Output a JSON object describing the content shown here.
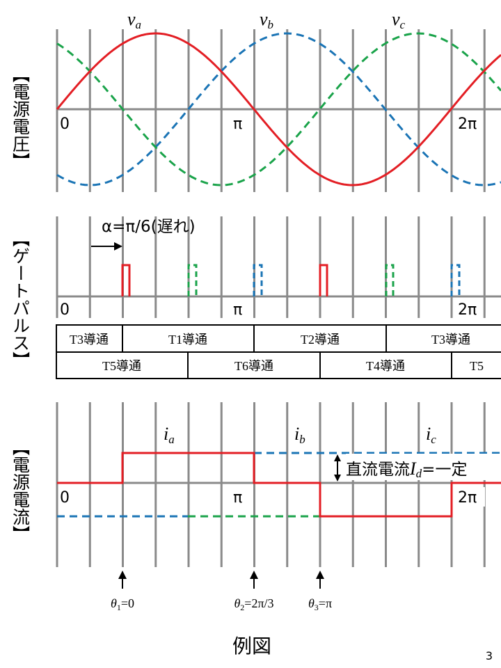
{
  "voltage_section": {
    "side_label": "【電源電圧】",
    "label_0": "0",
    "label_pi": "π",
    "label_2pi": "2π",
    "va": {
      "base": "v",
      "sub": "a"
    },
    "vb": {
      "base": "v",
      "sub": "b"
    },
    "vc": {
      "base": "v",
      "sub": "c"
    }
  },
  "pulse_section": {
    "side_label": "【ゲートパルス】",
    "alpha_label": "α=π/6(遅れ)",
    "label_0": "0",
    "label_pi": "π",
    "label_2pi": "2π"
  },
  "conduction_table": {
    "row1": [
      "T3導通",
      "T1導通",
      "T2導通",
      "T3導通"
    ],
    "row2": [
      "T5導通",
      "T6導通",
      "T4導通",
      "T5"
    ]
  },
  "current_section": {
    "side_label": "【電源電流】",
    "label_0": "0",
    "label_pi": "π",
    "label_2pi": "2π",
    "ia": {
      "base": "i",
      "sub": "a"
    },
    "ib": {
      "base": "i",
      "sub": "b"
    },
    "ic": {
      "base": "i",
      "sub": "c"
    },
    "dc_prefix": "直流電流",
    "dc_var": "I",
    "dc_sub": "d",
    "dc_suffix": "=一定"
  },
  "theta_labels": [
    {
      "base": "θ",
      "sub": "1",
      "rest": "=0"
    },
    {
      "base": "θ",
      "sub": "2",
      "rest": "=2π/3"
    },
    {
      "base": "θ",
      "sub": "3",
      "rest": "=π"
    }
  ],
  "caption": "例図",
  "page_number": "3",
  "colors": {
    "phase_a": "#e31e24",
    "phase_b": "#1a74b5",
    "phase_c": "#1aa34a",
    "grid": "#8a8a8a",
    "text": "#000000"
  }
}
